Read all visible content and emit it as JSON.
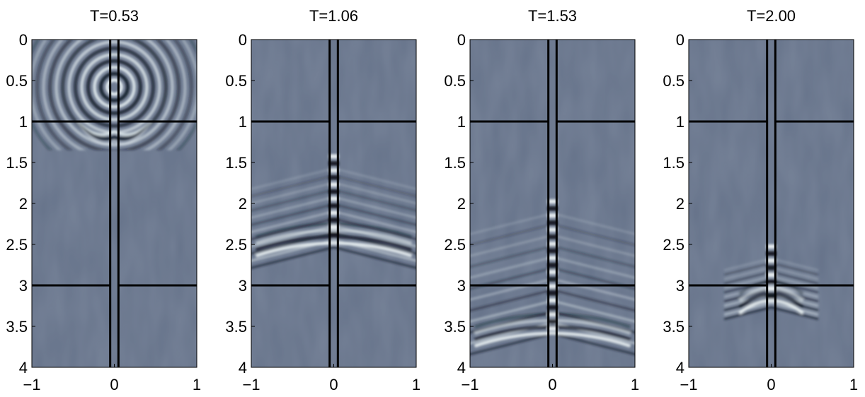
{
  "chart_data": [
    {
      "type": "heatmap",
      "title": "T=0.53",
      "xlim": [
        -1,
        1
      ],
      "ylim": [
        0,
        4
      ],
      "y_reversed": true,
      "xticks": [
        -1,
        0,
        1
      ],
      "xtick_labels": [
        "−1",
        "0",
        "1"
      ],
      "yticks": [
        0,
        0.5,
        1,
        1.5,
        2,
        2.5,
        3,
        3.5,
        4
      ],
      "ytick_labels": [
        "0",
        "0.5",
        "1",
        "1.5",
        "2",
        "2.5",
        "3",
        "3.5",
        "4"
      ],
      "grid": false,
      "colormap": "bone",
      "background_color": "#66738a",
      "interfaces_depth": [
        1,
        3
      ],
      "channel_walls_x": [
        -0.05,
        0.05
      ],
      "wavefront": {
        "style": "rings",
        "source": [
          0,
          0.58
        ],
        "depth_range": [
          0,
          1.35
        ]
      }
    },
    {
      "type": "heatmap",
      "title": "T=1.06",
      "xlim": [
        -1,
        1
      ],
      "ylim": [
        0,
        4
      ],
      "y_reversed": true,
      "xticks": [
        -1,
        0,
        1
      ],
      "xtick_labels": [
        "−1",
        "0",
        "1"
      ],
      "yticks": [
        0,
        0.5,
        1,
        1.5,
        2,
        2.5,
        3,
        3.5,
        4
      ],
      "ytick_labels": [
        "0",
        "0.5",
        "1",
        "1.5",
        "2",
        "2.5",
        "3",
        "3.5",
        "4"
      ],
      "grid": false,
      "colormap": "bone",
      "background_color": "#66738a",
      "interfaces_depth": [
        1,
        3
      ],
      "channel_walls_x": [
        -0.05,
        0.05
      ],
      "wavefront": {
        "style": "v-cone",
        "apex_depth": 1.4,
        "front_depth": 2.45
      }
    },
    {
      "type": "heatmap",
      "title": "T=1.53",
      "xlim": [
        -1,
        1
      ],
      "ylim": [
        0,
        4
      ],
      "y_reversed": true,
      "xticks": [
        -1,
        0,
        1
      ],
      "xtick_labels": [
        "−1",
        "0",
        "1"
      ],
      "yticks": [
        0,
        0.5,
        1,
        1.5,
        2,
        2.5,
        3,
        3.5,
        4
      ],
      "ytick_labels": [
        "0",
        "0.5",
        "1",
        "1.5",
        "2",
        "2.5",
        "3",
        "3.5",
        "4"
      ],
      "grid": false,
      "colormap": "bone",
      "background_color": "#66738a",
      "interfaces_depth": [
        1,
        3
      ],
      "channel_walls_x": [
        -0.05,
        0.05
      ],
      "wavefront": {
        "style": "v-cone",
        "apex_depth": 1.95,
        "front_depth": 3.55
      }
    },
    {
      "type": "heatmap",
      "title": "T=2.00",
      "xlim": [
        -1,
        1
      ],
      "ylim": [
        0,
        4
      ],
      "y_reversed": true,
      "xticks": [
        -1,
        0,
        1
      ],
      "xtick_labels": [
        "−1",
        "0",
        "1"
      ],
      "yticks": [
        0,
        0.5,
        1,
        1.5,
        2,
        2.5,
        3,
        3.5,
        4
      ],
      "ytick_labels": [
        "0",
        "0.5",
        "1",
        "1.5",
        "2",
        "2.5",
        "3",
        "3.5",
        "4"
      ],
      "grid": false,
      "colormap": "bone",
      "background_color": "#66738a",
      "interfaces_depth": [
        1,
        3
      ],
      "channel_walls_x": [
        -0.05,
        0.05
      ],
      "wavefront": {
        "style": "focused",
        "apex_depth": 2.5,
        "front_depth": 3.15
      }
    }
  ]
}
